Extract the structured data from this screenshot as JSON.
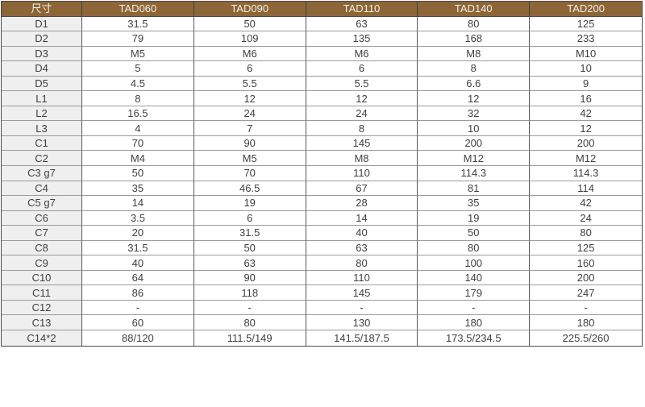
{
  "colors": {
    "header_bg": "#8C6638",
    "header_text": "#F5F0E1",
    "header_divider": "#4F3D24",
    "label_bg": "#EFEFEF",
    "cell_bg": "#FFFFFF",
    "text": "#3F3F3F",
    "border_outer": "#4A4A4A",
    "border_dark": "#575757",
    "border_light": "#9B9B9B"
  },
  "chart_data": {
    "type": "table",
    "title": "",
    "header": {
      "corner_label": "尺寸",
      "models": [
        "TAD060",
        "TAD090",
        "TAD110",
        "TAD140",
        "TAD200"
      ]
    },
    "rows": [
      {
        "label": "D1",
        "values": [
          "31.5",
          "50",
          "63",
          "80",
          "125"
        ]
      },
      {
        "label": "D2",
        "values": [
          "79",
          "109",
          "135",
          "168",
          "233"
        ]
      },
      {
        "label": "D3",
        "values": [
          "M5",
          "M6",
          "M6",
          "M8",
          "M10"
        ]
      },
      {
        "label": "D4",
        "values": [
          "5",
          "6",
          "6",
          "8",
          "10"
        ]
      },
      {
        "label": "D5",
        "values": [
          "4.5",
          "5.5",
          "5.5",
          "6.6",
          "9"
        ]
      },
      {
        "label": "L1",
        "values": [
          "8",
          "12",
          "12",
          "12",
          "16"
        ]
      },
      {
        "label": "L2",
        "values": [
          "16.5",
          "24",
          "24",
          "32",
          "42"
        ]
      },
      {
        "label": "L3",
        "values": [
          "4",
          "7",
          "8",
          "10",
          "12"
        ]
      },
      {
        "label": "C1",
        "values": [
          "70",
          "90",
          "145",
          "200",
          "200"
        ]
      },
      {
        "label": "C2",
        "values": [
          "M4",
          "M5",
          "M8",
          "M12",
          "M12"
        ]
      },
      {
        "label": "C3 g7",
        "values": [
          "50",
          "70",
          "110",
          "114.3",
          "114.3"
        ]
      },
      {
        "label": "C4",
        "values": [
          "35",
          "46.5",
          "67",
          "81",
          "114"
        ]
      },
      {
        "label": "C5 g7",
        "values": [
          "14",
          "19",
          "28",
          "35",
          "42"
        ]
      },
      {
        "label": "C6",
        "values": [
          "3.5",
          "6",
          "14",
          "19",
          "24"
        ]
      },
      {
        "label": "C7",
        "values": [
          "20",
          "31.5",
          "40",
          "50",
          "80"
        ]
      },
      {
        "label": "C8",
        "values": [
          "31.5",
          "50",
          "63",
          "80",
          "125"
        ]
      },
      {
        "label": "C9",
        "values": [
          "40",
          "63",
          "80",
          "100",
          "160"
        ]
      },
      {
        "label": "C10",
        "values": [
          "64",
          "90",
          "110",
          "140",
          "200"
        ]
      },
      {
        "label": "C11",
        "values": [
          "86",
          "118",
          "145",
          "179",
          "247"
        ]
      },
      {
        "label": "C12",
        "values": [
          "-",
          "-",
          "-",
          "-",
          "-"
        ]
      },
      {
        "label": "C13",
        "values": [
          "60",
          "80",
          "130",
          "180",
          "180"
        ]
      },
      {
        "label": "C14*2",
        "values": [
          "88/120",
          "111.5/149",
          "141.5/187.5",
          "173.5/234.5",
          "225.5/260"
        ]
      }
    ]
  }
}
